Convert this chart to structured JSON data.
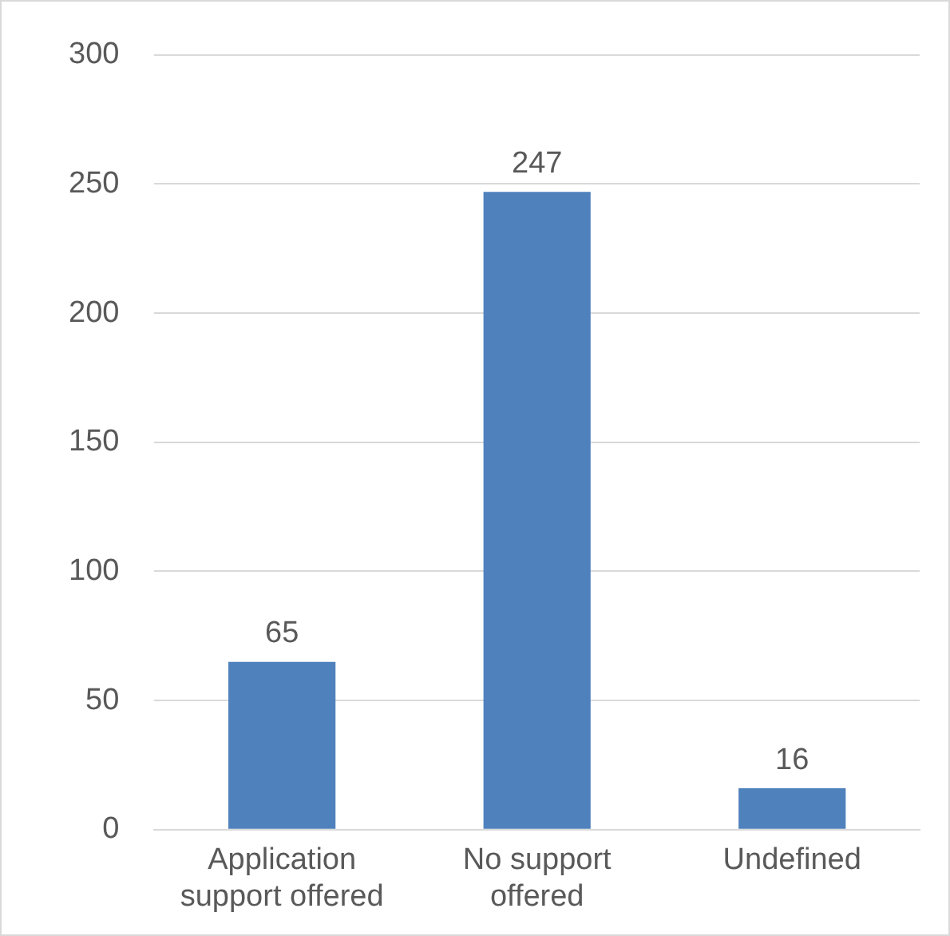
{
  "chart_data": {
    "type": "bar",
    "categories": [
      "Application support offered",
      "No support offered",
      "Undefined"
    ],
    "values": [
      65,
      247,
      16
    ],
    "color": "#4f81bd",
    "ylim": [
      0,
      300
    ],
    "yticks": [
      0,
      50,
      100,
      150,
      200,
      250,
      300
    ],
    "grid": "y",
    "data_labels": true
  }
}
